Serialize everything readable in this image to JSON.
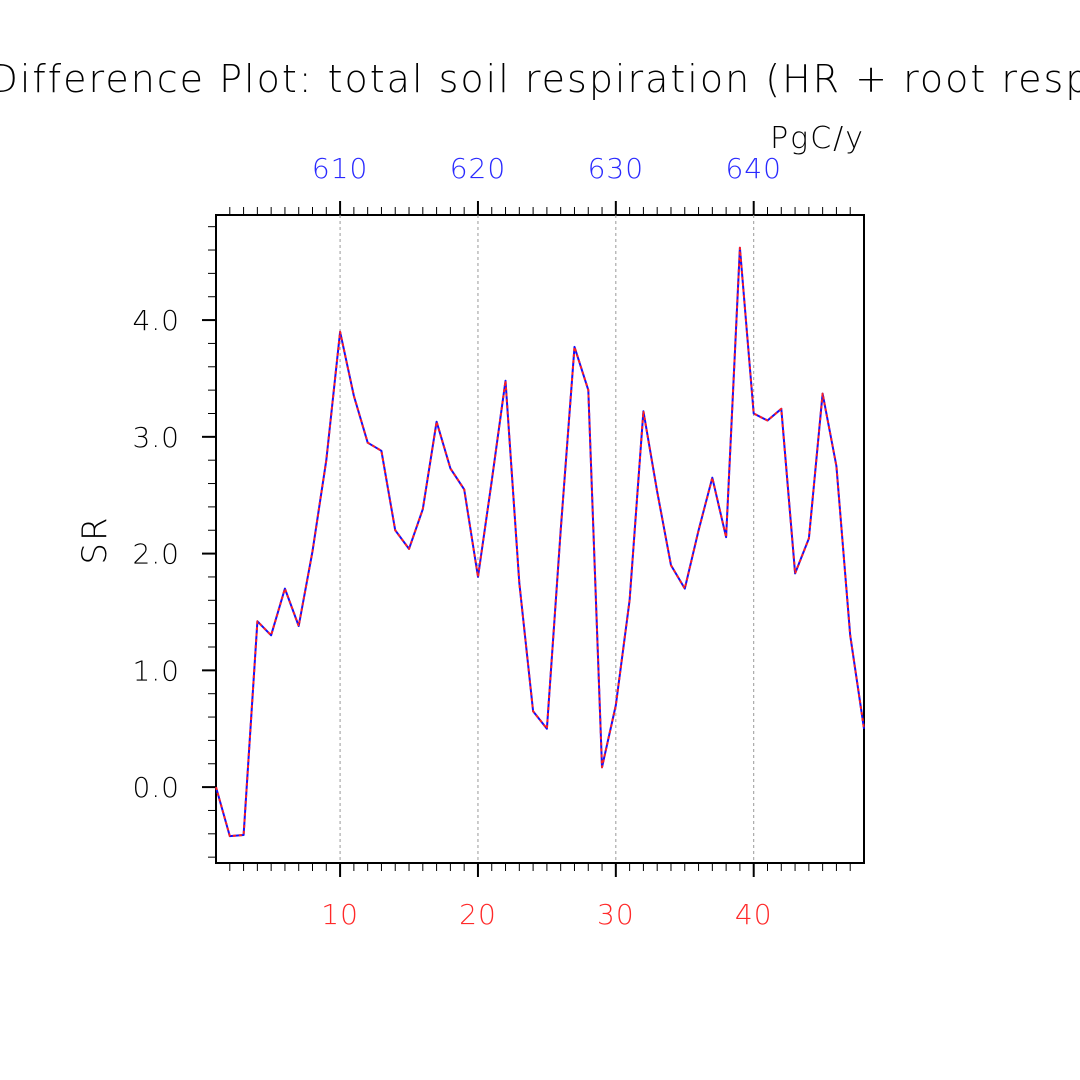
{
  "chart_data": {
    "type": "line",
    "title": "Difference Plot: total soil respiration (HR + root resp",
    "units": "PgC/y",
    "ylabel": "SR",
    "xlim": [
      1,
      48
    ],
    "ylim": [
      -0.65,
      4.9
    ],
    "yticks": [
      0.0,
      1.0,
      2.0,
      3.0,
      4.0
    ],
    "ytick_labels": [
      "0.0",
      "1.0",
      "2.0",
      "3.0",
      "4.0"
    ],
    "bottom_xticks": [
      10,
      20,
      30,
      40
    ],
    "bottom_xtick_labels": [
      "10",
      "20",
      "30",
      "40"
    ],
    "top_xtick_labels": [
      "610",
      "620",
      "630",
      "640"
    ],
    "grid": "vertical dashed at major x ticks",
    "colors": {
      "bottom_axis": "#ff2a2a",
      "top_axis": "#2a2aff",
      "line_blue": "#1010ff",
      "line_red": "#ff2020",
      "axis": "#000000",
      "grid": "#999999"
    },
    "series": [
      {
        "x": [
          1,
          2,
          3,
          4,
          5,
          6,
          7,
          8,
          9,
          10,
          11,
          12,
          13,
          14,
          15,
          16,
          17,
          18,
          19,
          20,
          21,
          22,
          23,
          24,
          25,
          26,
          27,
          28,
          29,
          30,
          31,
          32,
          33,
          34,
          35,
          36,
          37,
          38,
          39,
          40,
          41,
          42,
          43,
          44,
          45,
          46,
          47,
          48
        ],
        "values": [
          0.0,
          -0.42,
          -0.41,
          1.42,
          1.3,
          1.7,
          1.38,
          2.02,
          2.8,
          3.9,
          3.35,
          2.95,
          2.88,
          2.2,
          2.04,
          2.38,
          3.13,
          2.73,
          2.55,
          1.8,
          2.62,
          3.48,
          1.75,
          0.65,
          0.5,
          2.2,
          3.77,
          3.4,
          0.17,
          0.7,
          1.6,
          3.22,
          2.53,
          1.9,
          1.7,
          2.2,
          2.65,
          2.14,
          4.62,
          3.2,
          3.14,
          3.24,
          1.83,
          2.13,
          3.37,
          2.75,
          1.3,
          0.5
        ]
      }
    ]
  }
}
